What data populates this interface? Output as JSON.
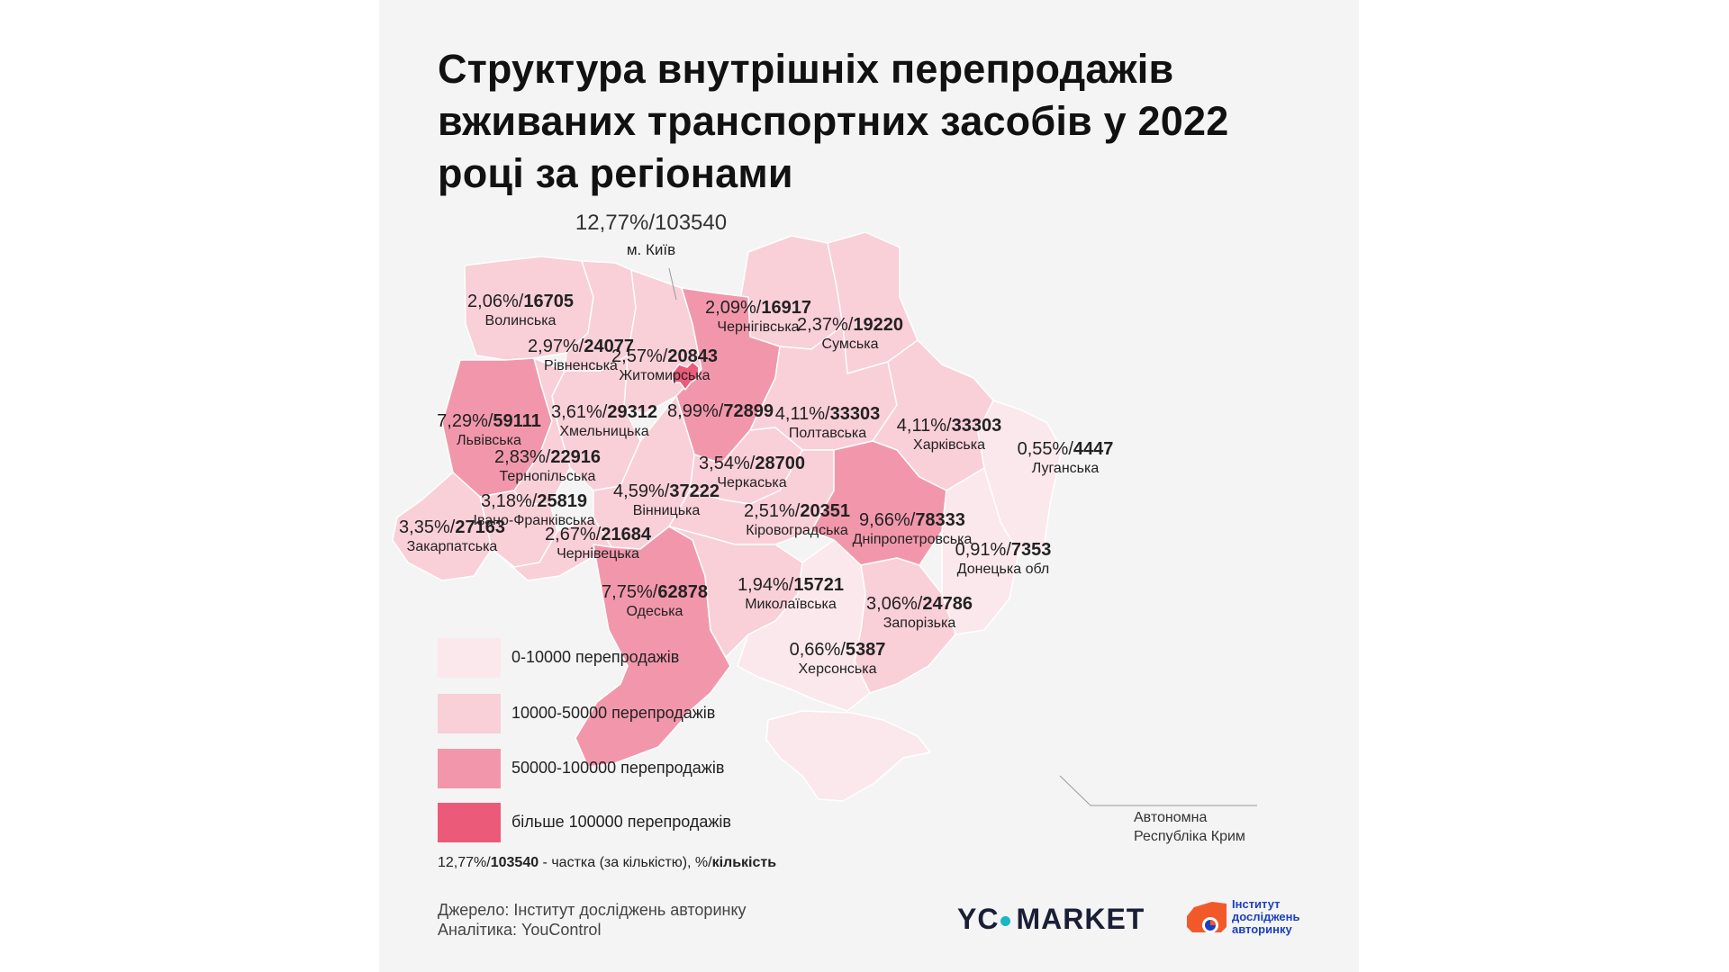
{
  "title": "Структура внутрішніх перепродажів вживаних транспортних засобів у 2022 році за регіонами",
  "colors": {
    "background": "#f4f4f4",
    "bin_0_10000": "#fbe8ec",
    "bin_10000_50000": "#f9cfd8",
    "bin_50000_100000": "#f297ab",
    "bin_100000_plus": "#ec5a7a"
  },
  "kyiv": {
    "share": "12,77%/",
    "count": "103540",
    "name": "м. Київ"
  },
  "regions": [
    {
      "id": "volynska",
      "share": "2,06%/",
      "count": "16705",
      "name": "Волинська",
      "bin": 1
    },
    {
      "id": "rivnenska",
      "share": "2,97%/",
      "count": "24077",
      "name": "Рівненська",
      "bin": 1
    },
    {
      "id": "zhytomyrska",
      "share": "2,57%/",
      "count": "20843",
      "name": "Житомирська",
      "bin": 1
    },
    {
      "id": "chernihivska",
      "share": "2,09%/",
      "count": "16917",
      "name": "Чернігівська",
      "bin": 1
    },
    {
      "id": "sumska",
      "share": "2,37%/",
      "count": "19220",
      "name": "Сумська",
      "bin": 1
    },
    {
      "id": "lvivska",
      "share": "7,29%/",
      "count": "59111",
      "name": "Львівська",
      "bin": 2
    },
    {
      "id": "khmelnytska",
      "share": "3,61%/",
      "count": "29312",
      "name": "Хмельницька",
      "bin": 1
    },
    {
      "id": "kyivska",
      "share": "8,99%/",
      "count": "72899",
      "name": "",
      "bin": 2
    },
    {
      "id": "poltavska",
      "share": "4,11%/",
      "count": "33303",
      "name": "Полтавська",
      "bin": 1
    },
    {
      "id": "kharkivska",
      "share": "4,11%/",
      "count": "33303",
      "name": "Харківська",
      "bin": 1
    },
    {
      "id": "luhanska",
      "share": "0,55%/",
      "count": "4447",
      "name": "Луганська",
      "bin": 0
    },
    {
      "id": "ternopilska",
      "share": "2,83%/",
      "count": "22916",
      "name": "Тернопільська",
      "bin": 1
    },
    {
      "id": "cherkaska",
      "share": "3,54%/",
      "count": "28700",
      "name": "Черкаська",
      "bin": 1
    },
    {
      "id": "ivano_frankivska",
      "share": "3,18%/",
      "count": "25819",
      "name": "Івано-Франківська",
      "bin": 1
    },
    {
      "id": "vinnytska",
      "share": "4,59%/",
      "count": "37222",
      "name": "Вінницька",
      "bin": 1
    },
    {
      "id": "kirovohradska",
      "share": "2,51%/",
      "count": "20351",
      "name": "Кіровоградська",
      "bin": 1
    },
    {
      "id": "dnipropetrovska",
      "share": "9,66%/",
      "count": "78333",
      "name": "Дніпропетровська",
      "bin": 2
    },
    {
      "id": "zakarpatska",
      "share": "3,35%/",
      "count": "27163",
      "name": "Закарпатська",
      "bin": 1
    },
    {
      "id": "chernivetska",
      "share": "2,67%/",
      "count": "21684",
      "name": "Чернівецька",
      "bin": 1
    },
    {
      "id": "donetska",
      "share": "0,91%/",
      "count": "7353",
      "name": "Донецька обл",
      "bin": 0
    },
    {
      "id": "odeska",
      "share": "7,75%/",
      "count": "62878",
      "name": "Одеська",
      "bin": 2
    },
    {
      "id": "mykolaivska",
      "share": "1,94%/",
      "count": "15721",
      "name": "Миколаївська",
      "bin": 1
    },
    {
      "id": "zaporizka",
      "share": "3,06%/",
      "count": "24786",
      "name": "Запорізька",
      "bin": 1
    },
    {
      "id": "khersonska",
      "share": "0,66%/",
      "count": "5387",
      "name": "Херсонська",
      "bin": 0
    }
  ],
  "crimea": {
    "line1": "Автономна",
    "line2": "Республіка Крим"
  },
  "legend": {
    "items": [
      {
        "label": "0-10000 перепродажів"
      },
      {
        "label": "10000-50000 перепродажів"
      },
      {
        "label": "50000-100000 перепродажів"
      },
      {
        "label": "більше 100000  перепродажів"
      }
    ],
    "note_share": "12,77%/",
    "note_count": "103540",
    "note_text": " - частка (за кількістю), %/",
    "note_bold": "кількість"
  },
  "footer": {
    "source": "Джерело: Інститут досліджень авторинку",
    "analytics": "Аналітика: YouControl"
  },
  "logos": {
    "yc_part1": "YC",
    "yc_part2": "MARKET",
    "institute_line1": "Інститут",
    "institute_line2": "досліджень",
    "institute_line3": "авторинку"
  }
}
